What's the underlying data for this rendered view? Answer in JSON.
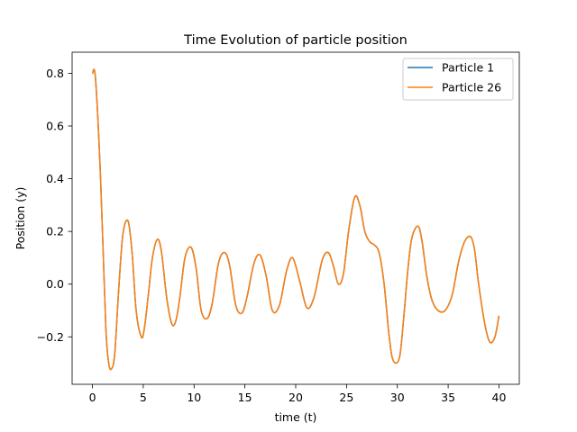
{
  "chart_data": {
    "type": "line",
    "title": "Time Evolution of particle position",
    "xlabel": "time (t)",
    "ylabel": "Position (y)",
    "xlim": [
      -2.0,
      42.0
    ],
    "ylim": [
      -0.38,
      0.88
    ],
    "xticks": [
      0,
      5,
      10,
      15,
      20,
      25,
      30,
      35,
      40
    ],
    "yticks": [
      -0.2,
      0.0,
      0.2,
      0.4,
      0.6,
      0.8
    ],
    "xtick_labels": [
      "0",
      "5",
      "10",
      "15",
      "20",
      "25",
      "30",
      "35",
      "40"
    ],
    "ytick_labels": [
      "−0.2",
      "0.0",
      "0.2",
      "0.4",
      "0.6",
      "0.8"
    ],
    "grid": false,
    "legend_position": "top-right",
    "series": [
      {
        "name": "Particle 1",
        "color": "#1f77b4",
        "x": [
          0.0,
          0.3,
          0.8,
          1.3,
          1.6,
          1.9,
          2.2,
          2.6,
          3.0,
          3.5,
          3.9,
          4.3,
          4.8,
          5.1,
          5.5,
          5.9,
          6.4,
          6.8,
          7.3,
          7.8,
          8.2,
          8.6,
          9.1,
          9.7,
          10.2,
          10.7,
          11.3,
          11.8,
          12.4,
          13.0,
          13.5,
          14.1,
          14.7,
          15.2,
          15.9,
          16.5,
          17.1,
          17.7,
          18.4,
          19.1,
          19.7,
          20.4,
          21.1,
          21.8,
          22.6,
          23.2,
          23.7,
          24.2,
          24.7,
          25.2,
          25.8,
          26.3,
          26.8,
          27.3,
          27.7,
          28.2,
          28.7,
          29.2,
          29.6,
          30.2,
          30.6,
          31.0,
          31.4,
          32.0,
          32.4,
          32.9,
          33.4,
          34.0,
          34.7,
          35.4,
          36.0,
          36.6,
          37.2,
          37.6,
          38.0,
          38.6,
          39.1,
          39.6,
          40.0
        ],
        "values": [
          0.8,
          0.78,
          0.4,
          -0.15,
          -0.3,
          -0.32,
          -0.26,
          -0.01,
          0.19,
          0.24,
          0.12,
          -0.1,
          -0.2,
          -0.17,
          -0.04,
          0.1,
          0.17,
          0.12,
          -0.05,
          -0.15,
          -0.14,
          -0.05,
          0.1,
          0.14,
          0.06,
          -0.1,
          -0.13,
          -0.07,
          0.08,
          0.12,
          0.07,
          -0.08,
          -0.11,
          -0.05,
          0.08,
          0.11,
          0.03,
          -0.1,
          -0.08,
          0.05,
          0.1,
          0.01,
          -0.09,
          -0.05,
          0.09,
          0.12,
          0.07,
          0.0,
          0.04,
          0.2,
          0.33,
          0.3,
          0.2,
          0.16,
          0.15,
          0.12,
          0.0,
          -0.2,
          -0.29,
          -0.28,
          -0.14,
          0.04,
          0.17,
          0.22,
          0.17,
          0.03,
          -0.06,
          -0.1,
          -0.1,
          -0.04,
          0.08,
          0.16,
          0.18,
          0.13,
          0.0,
          -0.15,
          -0.22,
          -0.2,
          -0.12
        ]
      },
      {
        "name": "Particle 26",
        "color": "#ff7f0e",
        "x": [
          0.0,
          0.3,
          0.8,
          1.3,
          1.6,
          1.9,
          2.2,
          2.6,
          3.0,
          3.5,
          3.9,
          4.3,
          4.8,
          5.1,
          5.5,
          5.9,
          6.4,
          6.8,
          7.3,
          7.8,
          8.2,
          8.6,
          9.1,
          9.7,
          10.2,
          10.7,
          11.3,
          11.8,
          12.4,
          13.0,
          13.5,
          14.1,
          14.7,
          15.2,
          15.9,
          16.5,
          17.1,
          17.7,
          18.4,
          19.1,
          19.7,
          20.4,
          21.1,
          21.8,
          22.6,
          23.2,
          23.7,
          24.2,
          24.7,
          25.2,
          25.8,
          26.3,
          26.8,
          27.3,
          27.7,
          28.2,
          28.7,
          29.2,
          29.6,
          30.2,
          30.6,
          31.0,
          31.4,
          32.0,
          32.4,
          32.9,
          33.4,
          34.0,
          34.7,
          35.4,
          36.0,
          36.6,
          37.2,
          37.6,
          38.0,
          38.6,
          39.1,
          39.6,
          40.0
        ],
        "values": [
          0.8,
          0.78,
          0.4,
          -0.15,
          -0.3,
          -0.32,
          -0.26,
          -0.01,
          0.19,
          0.24,
          0.12,
          -0.1,
          -0.2,
          -0.17,
          -0.04,
          0.1,
          0.17,
          0.12,
          -0.05,
          -0.15,
          -0.14,
          -0.05,
          0.1,
          0.14,
          0.06,
          -0.1,
          -0.13,
          -0.07,
          0.08,
          0.12,
          0.07,
          -0.08,
          -0.11,
          -0.05,
          0.08,
          0.11,
          0.03,
          -0.1,
          -0.08,
          0.05,
          0.1,
          0.01,
          -0.09,
          -0.05,
          0.09,
          0.12,
          0.07,
          0.0,
          0.04,
          0.2,
          0.33,
          0.3,
          0.2,
          0.16,
          0.15,
          0.12,
          0.0,
          -0.2,
          -0.29,
          -0.28,
          -0.14,
          0.04,
          0.17,
          0.22,
          0.17,
          0.03,
          -0.06,
          -0.1,
          -0.1,
          -0.04,
          0.08,
          0.16,
          0.18,
          0.13,
          0.0,
          -0.15,
          -0.22,
          -0.2,
          -0.12
        ]
      }
    ]
  }
}
